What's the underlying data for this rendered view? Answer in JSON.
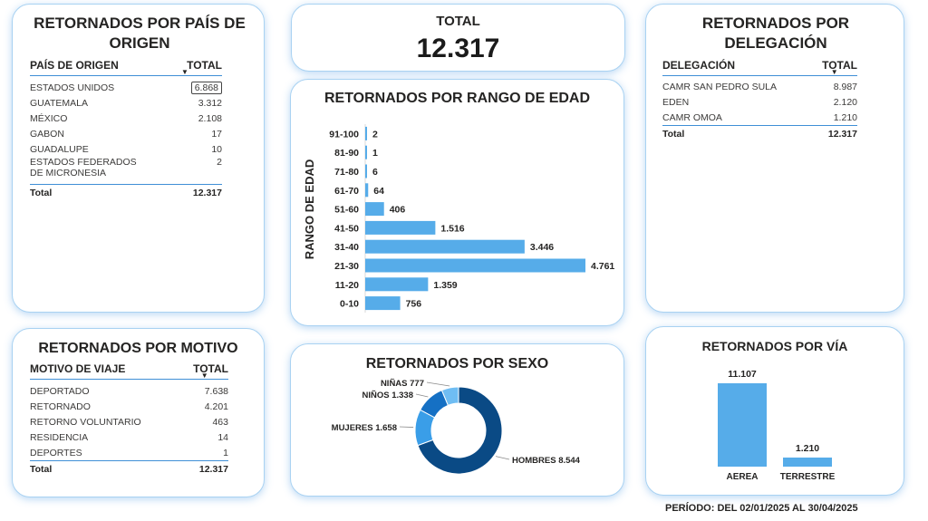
{
  "colors": {
    "bar": "#56ace9",
    "donut_hombres": "#0a4a85",
    "donut_mujeres": "#3a9ee8",
    "donut_ninos": "#1570c4",
    "donut_ninas": "#6fbdf3",
    "card_border": "#a9d2f2"
  },
  "pais": {
    "title": "RETORNADOS POR PAÍS DE ORIGEN",
    "col1": "PAÍS DE ORIGEN",
    "col2": "TOTAL",
    "rows": [
      {
        "name": "ESTADOS UNIDOS",
        "value": "6.868"
      },
      {
        "name": "GUATEMALA",
        "value": "3.312"
      },
      {
        "name": "MÉXICO",
        "value": "2.108"
      },
      {
        "name": "GABON",
        "value": "17"
      },
      {
        "name": "GUADALUPE",
        "value": "10"
      },
      {
        "name": "ESTADOS FEDERADOS DE MICRONESIA",
        "value": "2"
      }
    ],
    "total_label": "Total",
    "total_value": "12.317"
  },
  "total": {
    "label": "TOTAL",
    "value": "12.317"
  },
  "delegacion": {
    "title": "RETORNADOS POR DELEGACIÓN",
    "col1": "DELEGACIÓN",
    "col2": "TOTAL",
    "rows": [
      {
        "name": "CAMR SAN PEDRO SULA",
        "value": "8.987"
      },
      {
        "name": "EDEN",
        "value": "2.120"
      },
      {
        "name": "CAMR OMOA",
        "value": "1.210"
      }
    ],
    "total_label": "Total",
    "total_value": "12.317"
  },
  "motivo": {
    "title": "RETORNADOS POR MOTIVO",
    "col1": "MOTIVO DE VIAJE",
    "col2": "TOTAL",
    "rows": [
      {
        "name": "DEPORTADO",
        "value": "7.638"
      },
      {
        "name": "RETORNADO",
        "value": "4.201"
      },
      {
        "name": "RETORNO VOLUNTARIO",
        "value": "463"
      },
      {
        "name": "RESIDENCIA",
        "value": "14"
      },
      {
        "name": "DEPORTES",
        "value": "1"
      }
    ],
    "total_label": "Total",
    "total_value": "12.317"
  },
  "edad": {
    "title": "RETORNADOS POR RANGO DE EDAD"
  },
  "sexo": {
    "title": "RETORNADOS POR SEXO"
  },
  "via": {
    "title": "RETORNADOS POR VÍA"
  },
  "periodo": "PERÍODO: DEL 02/01/2025 AL 30/04/2025",
  "chart_data": [
    {
      "type": "bar",
      "orientation": "horizontal",
      "title": "RETORNADOS POR RANGO DE EDAD",
      "ylabel": "RANGO DE EDAD",
      "categories": [
        "91-100",
        "81-90",
        "71-80",
        "61-70",
        "51-60",
        "41-50",
        "31-40",
        "21-30",
        "11-20",
        "0-10"
      ],
      "values": [
        2,
        1,
        6,
        64,
        406,
        1516,
        3446,
        4761,
        1359,
        756
      ],
      "value_labels": [
        "2",
        "1",
        "6",
        "64",
        "406",
        "1.516",
        "3.446",
        "4.761",
        "1.359",
        "756"
      ]
    },
    {
      "type": "pie",
      "title": "RETORNADOS POR SEXO",
      "categories": [
        "HOMBRES",
        "MUJERES",
        "NIÑOS",
        "NIÑAS"
      ],
      "values": [
        8544,
        1658,
        1338,
        777
      ],
      "value_labels": [
        "8.544",
        "1.658",
        "1.338",
        "777"
      ]
    },
    {
      "type": "bar",
      "title": "RETORNADOS POR VÍA",
      "categories": [
        "AEREA",
        "TERRESTRE"
      ],
      "values": [
        11107,
        1210
      ],
      "value_labels": [
        "11.107",
        "1.210"
      ]
    }
  ]
}
